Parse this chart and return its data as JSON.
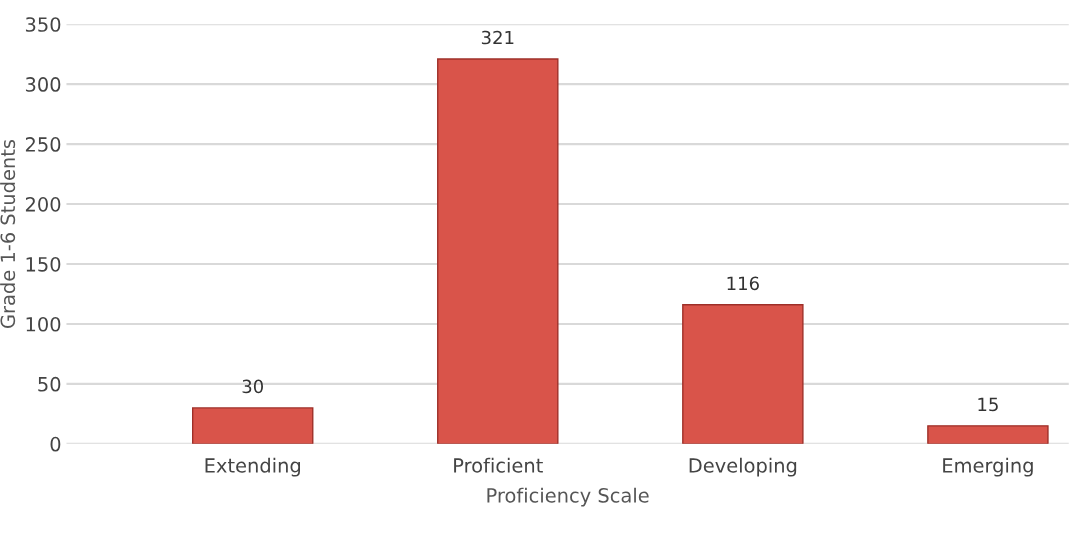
{
  "chart_data": {
    "type": "bar",
    "xlabel": "Proficiency Scale",
    "ylabel": "Grade 1-6 Students",
    "categories": [
      "Extending",
      "Proficient",
      "Developing",
      "Emerging"
    ],
    "values": [
      30,
      321,
      116,
      15
    ],
    "color": "#d9544a",
    "ylim": [
      0,
      350
    ],
    "yticks": [
      0,
      50,
      100,
      150,
      200,
      250,
      300,
      350
    ],
    "grid": "y",
    "data_labels": true
  }
}
